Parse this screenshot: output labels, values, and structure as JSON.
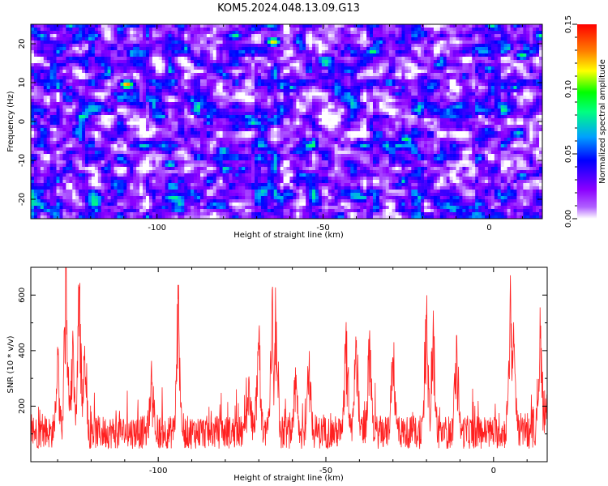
{
  "title": "KOM5.2024.048.13.09.G13",
  "chart_data": [
    {
      "type": "heatmap",
      "xlabel": "Height of straight line (km)",
      "ylabel": "Frequency (Hz)",
      "xlim": [
        -138,
        16
      ],
      "ylim": [
        -25,
        25
      ],
      "xticks": [
        -100,
        -50,
        0
      ],
      "yticks": [
        -20,
        -10,
        0,
        10,
        20
      ],
      "colorbar": {
        "label": "Normalized spectral amplitude",
        "range": [
          0,
          0.15
        ],
        "ticks": [
          "0.00",
          "0.05",
          "0.10",
          "0.15"
        ],
        "colormap": [
          "#ffffff",
          "#8b00ff",
          "#0000ff",
          "#00a0ff",
          "#00ff00",
          "#ffff00",
          "#ff8000",
          "#ff0000"
        ]
      },
      "hot_spots": [
        {
          "x": -109,
          "y": 9.5,
          "v": 0.13
        },
        {
          "x": -65,
          "y": 20.5,
          "v": 0.12
        },
        {
          "x": -35,
          "y": 18,
          "v": 0.09
        },
        {
          "x": -25,
          "y": -4.5,
          "v": 0.09
        },
        {
          "x": 10,
          "y": 17,
          "v": 0.09
        },
        {
          "x": -96,
          "y": -11,
          "v": 0.08
        },
        {
          "x": -80,
          "y": -7.5,
          "v": 0.08
        },
        {
          "x": -120,
          "y": 21.5,
          "v": 0.07
        },
        {
          "x": -30,
          "y": 10,
          "v": 0.07
        },
        {
          "x": -120,
          "y": -20,
          "v": 0.07
        },
        {
          "x": 10,
          "y": -14,
          "v": 0.07
        },
        {
          "x": -60,
          "y": -19,
          "v": 0.06
        },
        {
          "x": -41,
          "y": -19,
          "v": 0.06
        },
        {
          "x": 0,
          "y": 13.5,
          "v": 0.07
        },
        {
          "x": -20,
          "y": 22.5,
          "v": 0.06
        }
      ]
    },
    {
      "type": "line",
      "xlabel": "Height of straight line (km)",
      "ylabel": "SNR (10 * v/v)",
      "xlim": [
        -138,
        16
      ],
      "ylim": [
        0,
        700
      ],
      "xticks": [
        -100,
        -50,
        0
      ],
      "yticks": [
        200,
        400,
        600
      ],
      "color": "#ff2020",
      "baseline": 100,
      "peaks": [
        {
          "x": -130,
          "y": 360
        },
        {
          "x": -127.5,
          "y": 700
        },
        {
          "x": -125.5,
          "y": 410
        },
        {
          "x": -123.5,
          "y": 670
        },
        {
          "x": -122,
          "y": 420
        },
        {
          "x": -102,
          "y": 330
        },
        {
          "x": -94,
          "y": 630
        },
        {
          "x": -73,
          "y": 300
        },
        {
          "x": -70,
          "y": 420
        },
        {
          "x": -66,
          "y": 570
        },
        {
          "x": -65,
          "y": 490
        },
        {
          "x": -59,
          "y": 300
        },
        {
          "x": -55,
          "y": 370
        },
        {
          "x": -44,
          "y": 490
        },
        {
          "x": -41,
          "y": 450
        },
        {
          "x": -37,
          "y": 470
        },
        {
          "x": -30,
          "y": 400
        },
        {
          "x": -20,
          "y": 560
        },
        {
          "x": -18,
          "y": 480
        },
        {
          "x": -11,
          "y": 450
        },
        {
          "x": 5,
          "y": 610
        },
        {
          "x": 6,
          "y": 450
        },
        {
          "x": 14,
          "y": 490
        },
        {
          "x": 16,
          "y": 260
        }
      ]
    }
  ]
}
